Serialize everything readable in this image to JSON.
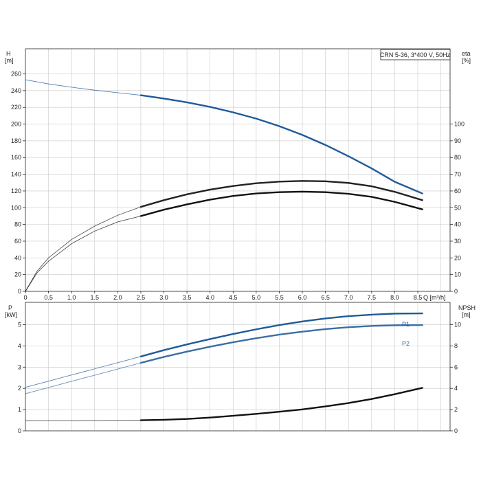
{
  "chart_data": [
    {
      "type": "line",
      "title": "CRN 5-36, 3*400 V, 50Hz",
      "left_axis": {
        "label_line1": "H",
        "label_line2": "[m]",
        "range": [
          0,
          290
        ],
        "ticks": [
          0,
          20,
          40,
          60,
          80,
          100,
          120,
          140,
          160,
          180,
          200,
          220,
          240,
          260
        ]
      },
      "right_axis": {
        "label_line1": "eta",
        "label_line2": "[%]",
        "range": [
          0,
          145
        ],
        "ticks": [
          0,
          10,
          20,
          30,
          40,
          50,
          60,
          70,
          80,
          90,
          100
        ]
      },
      "x_axis": {
        "label": "Q [m³/h]",
        "range": [
          0,
          9.2
        ],
        "ticks": [
          "0",
          "0.5",
          "1.0",
          "1.5",
          "2.0",
          "2.5",
          "3.0",
          "3.5",
          "4.0",
          "4.5",
          "5.0",
          "5.5",
          "6.0",
          "6.5",
          "7.0",
          "7.5",
          "8.0",
          "8.5"
        ]
      },
      "grid": true,
      "series": [
        {
          "axis": "left",
          "color": "#1f5a9a",
          "x_thin": [
            0,
            0.5,
            1,
            1.5,
            2,
            2.5
          ],
          "y_thin": [
            253,
            248,
            244,
            240.5,
            237.5,
            234.5
          ],
          "x_bold": [
            2.5,
            3,
            3.5,
            4,
            4.5,
            5,
            5.5,
            6,
            6.5,
            7,
            7.5,
            8,
            8.6
          ],
          "y_bold": [
            234.5,
            230.5,
            226,
            220.5,
            214,
            206.5,
            197.5,
            187,
            175,
            161.5,
            147,
            131,
            117
          ]
        },
        {
          "axis": "right",
          "color": "#222222",
          "x_thin": [
            0,
            0.25,
            0.5,
            1,
            1.5,
            2,
            2.5
          ],
          "y_thin": [
            0,
            12,
            20,
            31,
            39,
            45.5,
            50.5
          ],
          "x_bold": [
            2.5,
            3,
            3.5,
            4,
            4.5,
            5,
            5.5,
            6,
            6.5,
            7,
            7.5,
            8,
            8.6
          ],
          "y_bold": [
            50.5,
            54.5,
            58,
            60.8,
            63,
            64.6,
            65.6,
            66,
            65.8,
            64.8,
            62.8,
            59.5,
            54.5
          ]
        },
        {
          "axis": "right",
          "color": "#111111",
          "x_thin": [
            0,
            0.25,
            0.5,
            1,
            1.5,
            2,
            2.5
          ],
          "y_thin": [
            0,
            11,
            18,
            28.5,
            36,
            41.5,
            45
          ],
          "x_bold": [
            2.5,
            3,
            3.5,
            4,
            4.5,
            5,
            5.5,
            6,
            6.5,
            7,
            7.5,
            8,
            8.6
          ],
          "y_bold": [
            45,
            48.8,
            52,
            54.8,
            57,
            58.5,
            59.3,
            59.6,
            59.3,
            58.3,
            56.5,
            53.5,
            49
          ]
        }
      ]
    },
    {
      "type": "line",
      "left_axis": {
        "label_line1": "P",
        "label_line2": "[kW]",
        "range": [
          0,
          6.05
        ],
        "ticks": [
          0,
          1,
          2,
          3,
          4,
          5
        ]
      },
      "right_axis": {
        "label_line1": "NPSH",
        "label_line2": "[m]",
        "range": [
          0,
          12.1
        ],
        "ticks": [
          0,
          2,
          4,
          6,
          8,
          10
        ]
      },
      "x_axis": {
        "range": [
          0,
          9.2
        ]
      },
      "grid": true,
      "series": [
        {
          "name": "P1",
          "axis": "left",
          "color": "#1f5a9a",
          "x_thin": [
            0,
            0.5,
            1,
            1.5,
            2,
            2.5
          ],
          "y_thin": [
            2.05,
            2.34,
            2.63,
            2.92,
            3.21,
            3.5
          ],
          "x_bold": [
            2.5,
            3,
            3.5,
            4,
            4.5,
            5,
            5.5,
            6,
            6.5,
            7,
            7.5,
            8,
            8.6
          ],
          "y_bold": [
            3.5,
            3.8,
            4.07,
            4.32,
            4.56,
            4.78,
            4.98,
            5.15,
            5.29,
            5.4,
            5.47,
            5.52,
            5.53
          ]
        },
        {
          "name": "P2",
          "axis": "left",
          "color": "#3a6ea5",
          "x_thin": [
            0,
            0.5,
            1,
            1.5,
            2,
            2.5
          ],
          "y_thin": [
            1.75,
            2.04,
            2.33,
            2.62,
            2.91,
            3.2
          ],
          "x_bold": [
            2.5,
            3,
            3.5,
            4,
            4.5,
            5,
            5.5,
            6,
            6.5,
            7,
            7.5,
            8,
            8.6
          ],
          "y_bold": [
            3.2,
            3.48,
            3.73,
            3.96,
            4.17,
            4.36,
            4.53,
            4.67,
            4.79,
            4.88,
            4.94,
            4.97,
            4.98
          ]
        },
        {
          "axis": "right",
          "color": "#111111",
          "x_thin": [
            0,
            0.5,
            1,
            1.5,
            2,
            2.5
          ],
          "y_thin": [
            0.95,
            0.95,
            0.95,
            0.96,
            0.98,
            1.0
          ],
          "x_bold": [
            2.5,
            3,
            3.5,
            4,
            4.5,
            5,
            5.5,
            6,
            6.5,
            7,
            7.5,
            8,
            8.6
          ],
          "y_bold": [
            1.0,
            1.04,
            1.12,
            1.25,
            1.42,
            1.6,
            1.8,
            2.02,
            2.3,
            2.62,
            3.0,
            3.45,
            4.05
          ]
        }
      ]
    }
  ]
}
